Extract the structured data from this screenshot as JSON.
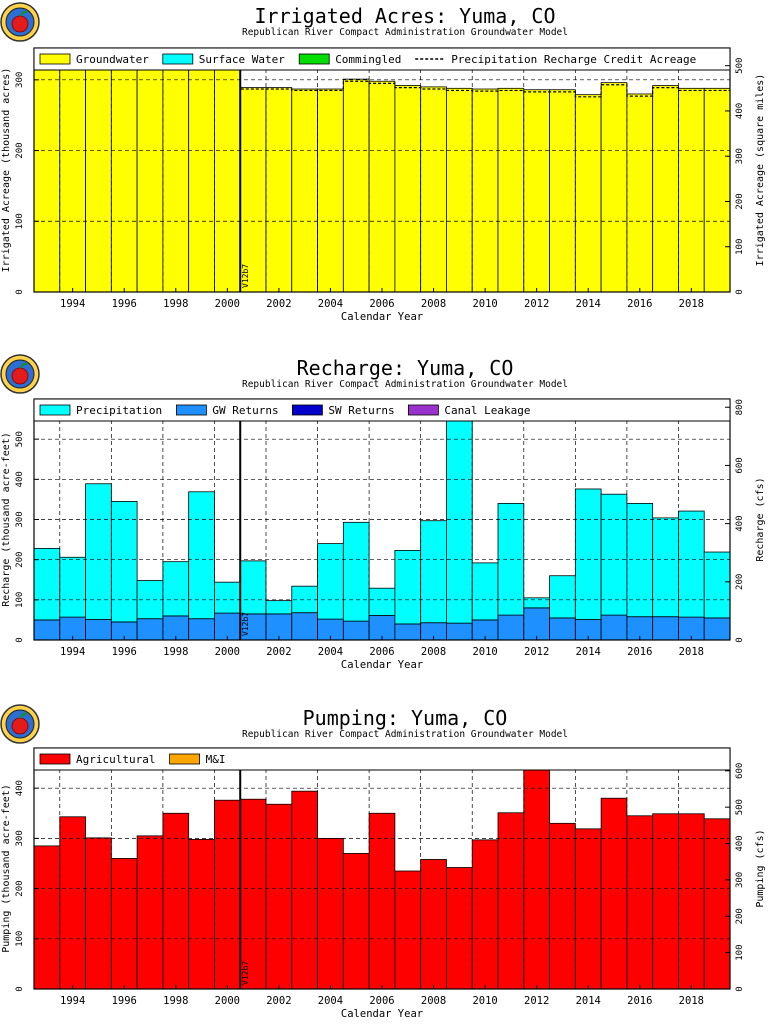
{
  "page": {
    "model_label": "Republican River Compact Administration Groundwater Model"
  },
  "colors": {
    "groundwater": "#ffff00",
    "surface_water": "#00ffff",
    "commingled": "#00dd00",
    "precipitation": "#00ffff",
    "gw_returns": "#1e90ff",
    "sw_returns": "#0000cd",
    "canal_leakage": "#9932cc",
    "agricultural": "#ff0000",
    "mi": "#ffa500"
  },
  "chart_data": [
    {
      "id": "irrigated",
      "type": "bar",
      "title": "Irrigated Acres: Yuma, CO",
      "subtitle": "Republican River Compact Administration Groundwater Model",
      "xlabel": "Calendar Year",
      "ylabel": "Irrigated Acreage (thousand acres)",
      "y2label": "Irrigated Acreage (square miles)",
      "xlim": [
        1992.5,
        2019.5
      ],
      "ylim": [
        0,
        345
      ],
      "yticks": [
        0,
        100,
        200,
        300
      ],
      "y2ticks": [
        "0",
        "100",
        "200",
        "300",
        "400",
        "500"
      ],
      "y2_factor": 1.5625,
      "xtick_labels": [
        "1994",
        "1996",
        "1998",
        "2000",
        "2002",
        "2004",
        "2006",
        "2008",
        "2010",
        "2012",
        "2014",
        "2016",
        "2018"
      ],
      "marker": {
        "x": 2000.5,
        "label": "V12b7"
      },
      "legend": [
        {
          "label": "Groundwater",
          "color": "#ffff00",
          "style": "box"
        },
        {
          "label": "Surface Water",
          "color": "#00ffff",
          "style": "box"
        },
        {
          "label": "Commingled",
          "color": "#00dd00",
          "style": "box"
        },
        {
          "label": "Precipitation Recharge Credit Acreage",
          "color": "#000000",
          "style": "dash"
        }
      ],
      "categories": [
        "1993",
        "1994",
        "1995",
        "1996",
        "1997",
        "1998",
        "1999",
        "2000",
        "2001",
        "2002",
        "2003",
        "2004",
        "2005",
        "2006",
        "2007",
        "2008",
        "2009",
        "2010",
        "2011",
        "2012",
        "2013",
        "2014",
        "2015",
        "2016",
        "2017",
        "2018",
        "2019"
      ],
      "series": [
        {
          "name": "Groundwater",
          "color": "#ffff00",
          "values": [
            343,
            342,
            343,
            343,
            343,
            343,
            343,
            343,
            289,
            289,
            287,
            287,
            301,
            298,
            292,
            290,
            288,
            287,
            288,
            286,
            286,
            279,
            296,
            280,
            292,
            288,
            288
          ]
        }
      ],
      "dashed_series": {
        "name": "Precipitation Recharge Credit Acreage",
        "values": [
          339,
          338,
          339,
          339,
          339,
          339,
          339,
          339,
          287,
          287,
          285,
          285,
          298,
          295,
          289,
          287,
          285,
          284,
          285,
          283,
          283,
          276,
          293,
          277,
          289,
          285,
          285
        ]
      }
    },
    {
      "id": "recharge",
      "type": "bar",
      "title": "Recharge: Yuma, CO",
      "subtitle": "Republican River Compact Administration Groundwater Model",
      "xlabel": "Calendar Year",
      "ylabel": "Recharge (thousand acre-feet)",
      "y2label": "Recharge (cfs)",
      "xlim": [
        1992.5,
        2019.5
      ],
      "ylim": [
        0,
        600
      ],
      "yticks": [
        0,
        100,
        200,
        300,
        400,
        500
      ],
      "y2ticks": [
        "0",
        "200",
        "400",
        "600",
        "800"
      ],
      "y2_factor": 1.3806,
      "xtick_labels": [
        "1994",
        "1996",
        "1998",
        "2000",
        "2002",
        "2004",
        "2006",
        "2008",
        "2010",
        "2012",
        "2014",
        "2016",
        "2018"
      ],
      "marker": {
        "x": 2000.5,
        "label": "V12b7"
      },
      "legend": [
        {
          "label": "Precipitation",
          "color": "#00ffff",
          "style": "box"
        },
        {
          "label": "GW Returns",
          "color": "#1e90ff",
          "style": "box"
        },
        {
          "label": "SW Returns",
          "color": "#0000cd",
          "style": "box"
        },
        {
          "label": "Canal Leakage",
          "color": "#9932cc",
          "style": "box"
        }
      ],
      "categories": [
        "1993",
        "1994",
        "1995",
        "1996",
        "1997",
        "1998",
        "1999",
        "2000",
        "2001",
        "2002",
        "2003",
        "2004",
        "2005",
        "2006",
        "2007",
        "2008",
        "2009",
        "2010",
        "2011",
        "2012",
        "2013",
        "2014",
        "2015",
        "2016",
        "2017",
        "2018",
        "2019"
      ],
      "series": [
        {
          "name": "GW Returns",
          "color": "#1e90ff",
          "values": [
            50,
            57,
            51,
            45,
            53,
            60,
            53,
            67,
            65,
            65,
            68,
            52,
            47,
            61,
            40,
            43,
            42,
            50,
            62,
            80,
            55,
            51,
            62,
            58,
            58,
            57,
            55
          ]
        },
        {
          "name": "Precipitation",
          "color": "#00ffff",
          "values": [
            178,
            149,
            338,
            300,
            95,
            135,
            316,
            77,
            132,
            33,
            66,
            188,
            246,
            68,
            183,
            254,
            555,
            142,
            278,
            25,
            105,
            325,
            301,
            282,
            246,
            264,
            164
          ]
        }
      ]
    },
    {
      "id": "pumping",
      "type": "bar",
      "title": "Pumping: Yuma, CO",
      "subtitle": "Republican River Compact Administration Groundwater Model",
      "xlabel": "Calendar Year",
      "ylabel": "Pumping (thousand acre-feet)",
      "y2label": "Pumping (cfs)",
      "xlim": [
        1992.5,
        2019.5
      ],
      "ylim": [
        0,
        480
      ],
      "yticks": [
        0,
        100,
        200,
        300,
        400
      ],
      "y2ticks": [
        "0",
        "100",
        "200",
        "300",
        "400",
        "500",
        "600"
      ],
      "y2_factor": 1.3806,
      "xtick_labels": [
        "1994",
        "1996",
        "1998",
        "2000",
        "2002",
        "2004",
        "2006",
        "2008",
        "2010",
        "2012",
        "2014",
        "2016",
        "2018"
      ],
      "marker": {
        "x": 2000.5,
        "label": "V12b7"
      },
      "legend": [
        {
          "label": "Agricultural",
          "color": "#ff0000",
          "style": "box"
        },
        {
          "label": "M&I",
          "color": "#ffa500",
          "style": "box"
        }
      ],
      "categories": [
        "1993",
        "1994",
        "1995",
        "1996",
        "1997",
        "1998",
        "1999",
        "2000",
        "2001",
        "2002",
        "2003",
        "2004",
        "2005",
        "2006",
        "2007",
        "2008",
        "2009",
        "2010",
        "2011",
        "2012",
        "2013",
        "2014",
        "2015",
        "2016",
        "2017",
        "2018",
        "2019"
      ],
      "series": [
        {
          "name": "Agricultural",
          "color": "#ff0000",
          "values": [
            285,
            343,
            301,
            260,
            305,
            350,
            298,
            376,
            378,
            368,
            394,
            300,
            270,
            350,
            235,
            258,
            242,
            297,
            351,
            462,
            330,
            319,
            380,
            345,
            349,
            349,
            339
          ]
        }
      ]
    }
  ]
}
